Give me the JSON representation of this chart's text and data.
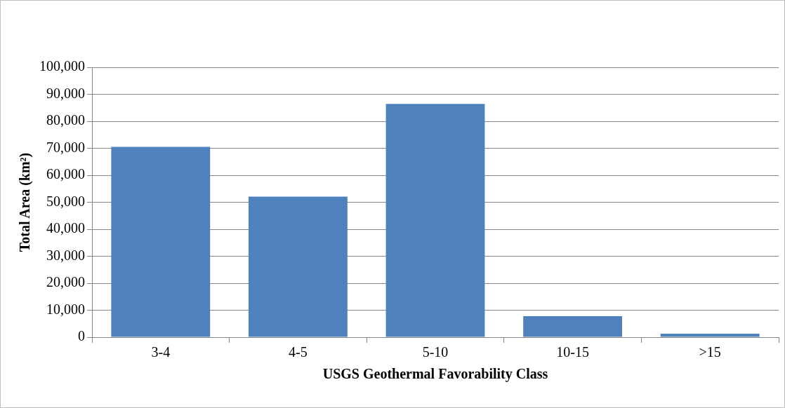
{
  "chart_data": {
    "type": "bar",
    "xlabel": "USGS Geothermal Favorability Class",
    "ylabel": "Total Area (km²)",
    "categories": [
      "3-4",
      "4-5",
      "5-10",
      "10-15",
      ">15"
    ],
    "values": [
      70500,
      52100,
      86400,
      7800,
      1300
    ],
    "color": "#4f81bd",
    "ylim": [
      0,
      100000
    ],
    "yticks": [
      {
        "value": 0,
        "label": "0"
      },
      {
        "value": 10000,
        "label": "10,000"
      },
      {
        "value": 20000,
        "label": "20,000"
      },
      {
        "value": 30000,
        "label": "30,000"
      },
      {
        "value": 40000,
        "label": "40,000"
      },
      {
        "value": 50000,
        "label": "50,000"
      },
      {
        "value": 60000,
        "label": "60,000"
      },
      {
        "value": 70000,
        "label": "70,000"
      },
      {
        "value": 80000,
        "label": "80,000"
      },
      {
        "value": 90000,
        "label": "90,000"
      },
      {
        "value": 100000,
        "label": "100,000"
      }
    ],
    "grid": "y"
  }
}
